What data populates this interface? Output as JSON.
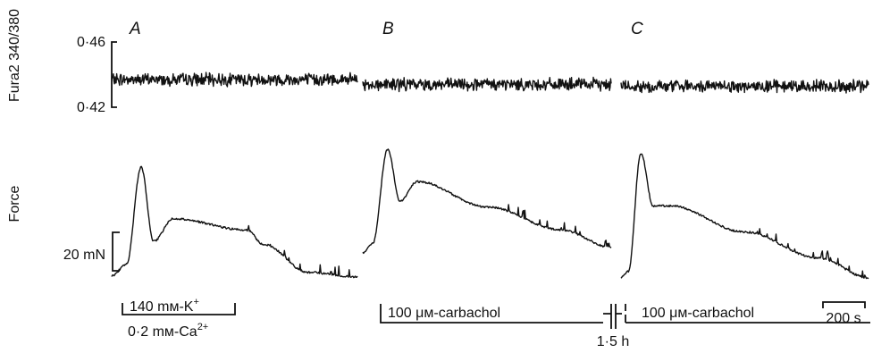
{
  "chart_data": {
    "type": "line",
    "panels": [
      "A",
      "B",
      "C"
    ],
    "ratio_axis": {
      "label": "Fura2 340/380",
      "ticks": [
        "0·46",
        "0·42"
      ],
      "range": [
        0.42,
        0.46
      ]
    },
    "force_axis": {
      "label": "Force",
      "scale_bar": "20 mN"
    },
    "series": [
      {
        "panel": "A",
        "ratio_mean": 0.437,
        "force_profile": [
          [
            0,
            0.05
          ],
          [
            0.06,
            0.15
          ],
          [
            0.12,
            1.0
          ],
          [
            0.17,
            0.35
          ],
          [
            0.25,
            0.55
          ],
          [
            0.55,
            0.45
          ],
          [
            0.62,
            0.32
          ],
          [
            0.8,
            0.08
          ],
          [
            1.0,
            0.04
          ]
        ]
      },
      {
        "panel": "B",
        "ratio_mean": 0.434,
        "force_profile": [
          [
            0,
            0.1
          ],
          [
            0.04,
            0.18
          ],
          [
            0.1,
            1.0
          ],
          [
            0.15,
            0.55
          ],
          [
            0.22,
            0.72
          ],
          [
            0.5,
            0.5
          ],
          [
            0.8,
            0.3
          ],
          [
            1.0,
            0.15
          ]
        ]
      },
      {
        "panel": "C",
        "ratio_mean": 0.433,
        "force_profile": [
          [
            0,
            0.05
          ],
          [
            0.03,
            0.1
          ],
          [
            0.08,
            1.0
          ],
          [
            0.13,
            0.6
          ],
          [
            0.2,
            0.6
          ],
          [
            0.5,
            0.4
          ],
          [
            0.8,
            0.2
          ],
          [
            1.0,
            0.05
          ]
        ]
      }
    ],
    "stimuli": [
      {
        "panel": "A",
        "label": "140 mм-K",
        "superscript": "+"
      },
      {
        "panel": "A",
        "label": "0·2 mм-Ca",
        "superscript": "2+"
      },
      {
        "panel": "B",
        "label": "100 μм-carbachol"
      },
      {
        "panel": "C",
        "label": "100 μм-carbachol"
      }
    ],
    "break_label": "1·5 h",
    "time_scale_bar": "200 s"
  }
}
